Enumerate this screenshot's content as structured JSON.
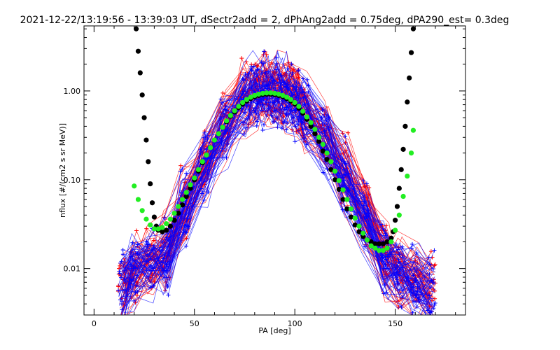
{
  "chart_data": {
    "type": "line",
    "title": "2021-12-22/13:19:56 - 13:39:03 UT, dSectr2add = 2, dPhAng2add = 0.75deg, dPA290_est=    0.3deg",
    "xlabel": "PA [deg]",
    "ylabel": "nflux [#/(cm2 s sr MeV)]",
    "xlim": [
      -5,
      185
    ],
    "ylim": [
      0.003,
      5.4
    ],
    "y_scale": "log",
    "x_ticks": [
      0,
      50,
      100,
      150
    ],
    "x_tick_labels": [
      "0",
      "50",
      "100",
      "150"
    ],
    "y_ticks": [
      0.01,
      0.1,
      1.0
    ],
    "y_tick_labels": [
      "0.01",
      "0.10",
      "1.00"
    ],
    "grid": false,
    "legend": "none",
    "series": [
      {
        "color": "#ff0000",
        "marker": "plus",
        "style": "thin-lines",
        "representative_profile": {
          "x": [
            14,
            20,
            28,
            36,
            45,
            55,
            65,
            75,
            80,
            85,
            90,
            95,
            100,
            105,
            115,
            125,
            135,
            145,
            152,
            160,
            168
          ],
          "y": [
            0.006,
            0.009,
            0.012,
            0.015,
            0.05,
            0.15,
            0.4,
            0.8,
            1.0,
            1.05,
            1.0,
            0.95,
            0.85,
            0.6,
            0.3,
            0.12,
            0.04,
            0.012,
            0.009,
            0.007,
            0.006
          ]
        }
      },
      {
        "color": "#0000ff",
        "marker": "plus",
        "style": "thin-lines",
        "representative_profile": {
          "x": [
            14,
            20,
            28,
            36,
            45,
            55,
            65,
            75,
            80,
            85,
            90,
            95,
            100,
            105,
            115,
            125,
            135,
            145,
            152,
            160,
            168
          ],
          "y": [
            0.006,
            0.01,
            0.012,
            0.014,
            0.045,
            0.14,
            0.38,
            0.75,
            0.95,
            1.0,
            0.98,
            0.92,
            0.82,
            0.58,
            0.28,
            0.11,
            0.038,
            0.012,
            0.009,
            0.007,
            0.006
          ]
        }
      },
      {
        "color": "#000000",
        "marker": "circle",
        "style": "dots",
        "x": [
          21,
          22,
          23,
          24,
          25,
          26,
          27,
          28,
          29,
          30,
          31,
          32,
          34,
          36,
          38,
          40,
          42,
          44,
          46,
          48,
          50,
          52,
          54,
          56,
          58,
          60,
          62,
          64,
          66,
          68,
          70,
          72,
          74,
          76,
          78,
          80,
          82,
          84,
          86,
          88,
          90,
          92,
          94,
          96,
          98,
          100,
          102,
          104,
          106,
          108,
          110,
          112,
          114,
          116,
          118,
          120,
          122,
          124,
          126,
          128,
          130,
          132,
          134,
          136,
          138,
          140,
          142,
          144,
          146,
          148,
          149,
          150,
          151,
          152,
          153,
          154,
          155,
          156,
          157,
          158,
          159
        ],
        "y": [
          5.0,
          2.8,
          1.6,
          0.9,
          0.5,
          0.28,
          0.16,
          0.09,
          0.055,
          0.038,
          0.03,
          0.027,
          0.026,
          0.027,
          0.03,
          0.035,
          0.042,
          0.052,
          0.065,
          0.08,
          0.1,
          0.125,
          0.155,
          0.19,
          0.23,
          0.28,
          0.33,
          0.39,
          0.45,
          0.52,
          0.58,
          0.65,
          0.71,
          0.77,
          0.82,
          0.86,
          0.89,
          0.91,
          0.92,
          0.92,
          0.91,
          0.89,
          0.86,
          0.82,
          0.77,
          0.71,
          0.64,
          0.56,
          0.48,
          0.4,
          0.33,
          0.27,
          0.21,
          0.17,
          0.13,
          0.1,
          0.078,
          0.06,
          0.047,
          0.038,
          0.031,
          0.026,
          0.023,
          0.021,
          0.02,
          0.019,
          0.019,
          0.019,
          0.02,
          0.022,
          0.026,
          0.035,
          0.05,
          0.08,
          0.13,
          0.22,
          0.4,
          0.75,
          1.4,
          2.7,
          5.0
        ]
      },
      {
        "color": "#22ee22",
        "marker": "circle",
        "style": "dots",
        "x": [
          20,
          22,
          24,
          26,
          28,
          30,
          32,
          34,
          36,
          38,
          40,
          42,
          44,
          46,
          48,
          50,
          52,
          54,
          56,
          58,
          60,
          62,
          64,
          66,
          68,
          70,
          72,
          74,
          76,
          78,
          80,
          82,
          84,
          86,
          88,
          90,
          92,
          94,
          96,
          98,
          100,
          102,
          104,
          106,
          108,
          110,
          112,
          114,
          116,
          118,
          120,
          122,
          124,
          126,
          128,
          130,
          132,
          134,
          136,
          138,
          140,
          142,
          144,
          146,
          148,
          150,
          152,
          154,
          156,
          158,
          159
        ],
        "y": [
          0.085,
          0.06,
          0.045,
          0.036,
          0.031,
          0.028,
          0.028,
          0.029,
          0.032,
          0.036,
          0.042,
          0.05,
          0.06,
          0.072,
          0.088,
          0.105,
          0.13,
          0.16,
          0.19,
          0.23,
          0.28,
          0.33,
          0.39,
          0.46,
          0.53,
          0.6,
          0.67,
          0.74,
          0.8,
          0.85,
          0.89,
          0.92,
          0.94,
          0.95,
          0.95,
          0.94,
          0.92,
          0.89,
          0.85,
          0.8,
          0.74,
          0.67,
          0.59,
          0.51,
          0.44,
          0.37,
          0.3,
          0.25,
          0.2,
          0.16,
          0.125,
          0.098,
          0.077,
          0.06,
          0.047,
          0.037,
          0.03,
          0.025,
          0.021,
          0.018,
          0.017,
          0.016,
          0.016,
          0.017,
          0.02,
          0.027,
          0.04,
          0.065,
          0.11,
          0.2,
          0.36
        ]
      }
    ]
  }
}
